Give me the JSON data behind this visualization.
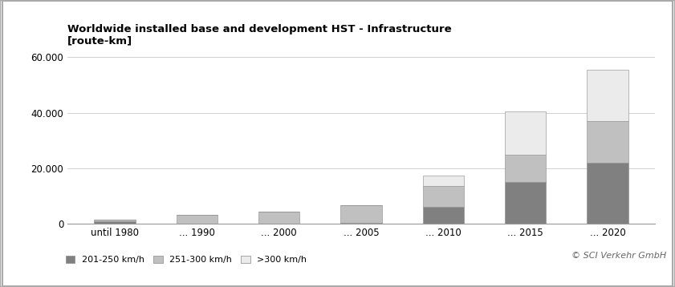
{
  "title_line1": "Worldwide installed base and development HST - Infrastructure",
  "title_line2": "[route-km]",
  "categories": [
    "until 1980",
    "... 1990",
    "... 2000",
    "... 2005",
    "... 2010",
    "... 2015",
    "... 2020"
  ],
  "series_201_250": [
    900,
    0,
    0,
    500,
    6000,
    15000,
    22000
  ],
  "series_251_300": [
    500,
    3200,
    4500,
    6200,
    7500,
    10000,
    15000
  ],
  "series_gt300": [
    0,
    0,
    0,
    0,
    4000,
    15500,
    18500
  ],
  "color_201_250": "#808080",
  "color_251_300": "#c0c0c0",
  "color_gt300": "#ebebeb",
  "legend_labels": [
    "201-250 km/h",
    "251-300 km/h",
    ">300 km/h"
  ],
  "ylim": [
    0,
    62000
  ],
  "yticks": [
    0,
    20000,
    40000,
    60000
  ],
  "ytick_labels": [
    "0",
    "20.000",
    "40.000",
    "60.000"
  ],
  "copyright": "© SCI Verkehr GmbH",
  "background_color": "#ffffff",
  "grid_color": "#d0d0d0",
  "fig_width": 8.41,
  "fig_height": 3.58,
  "dpi": 100
}
